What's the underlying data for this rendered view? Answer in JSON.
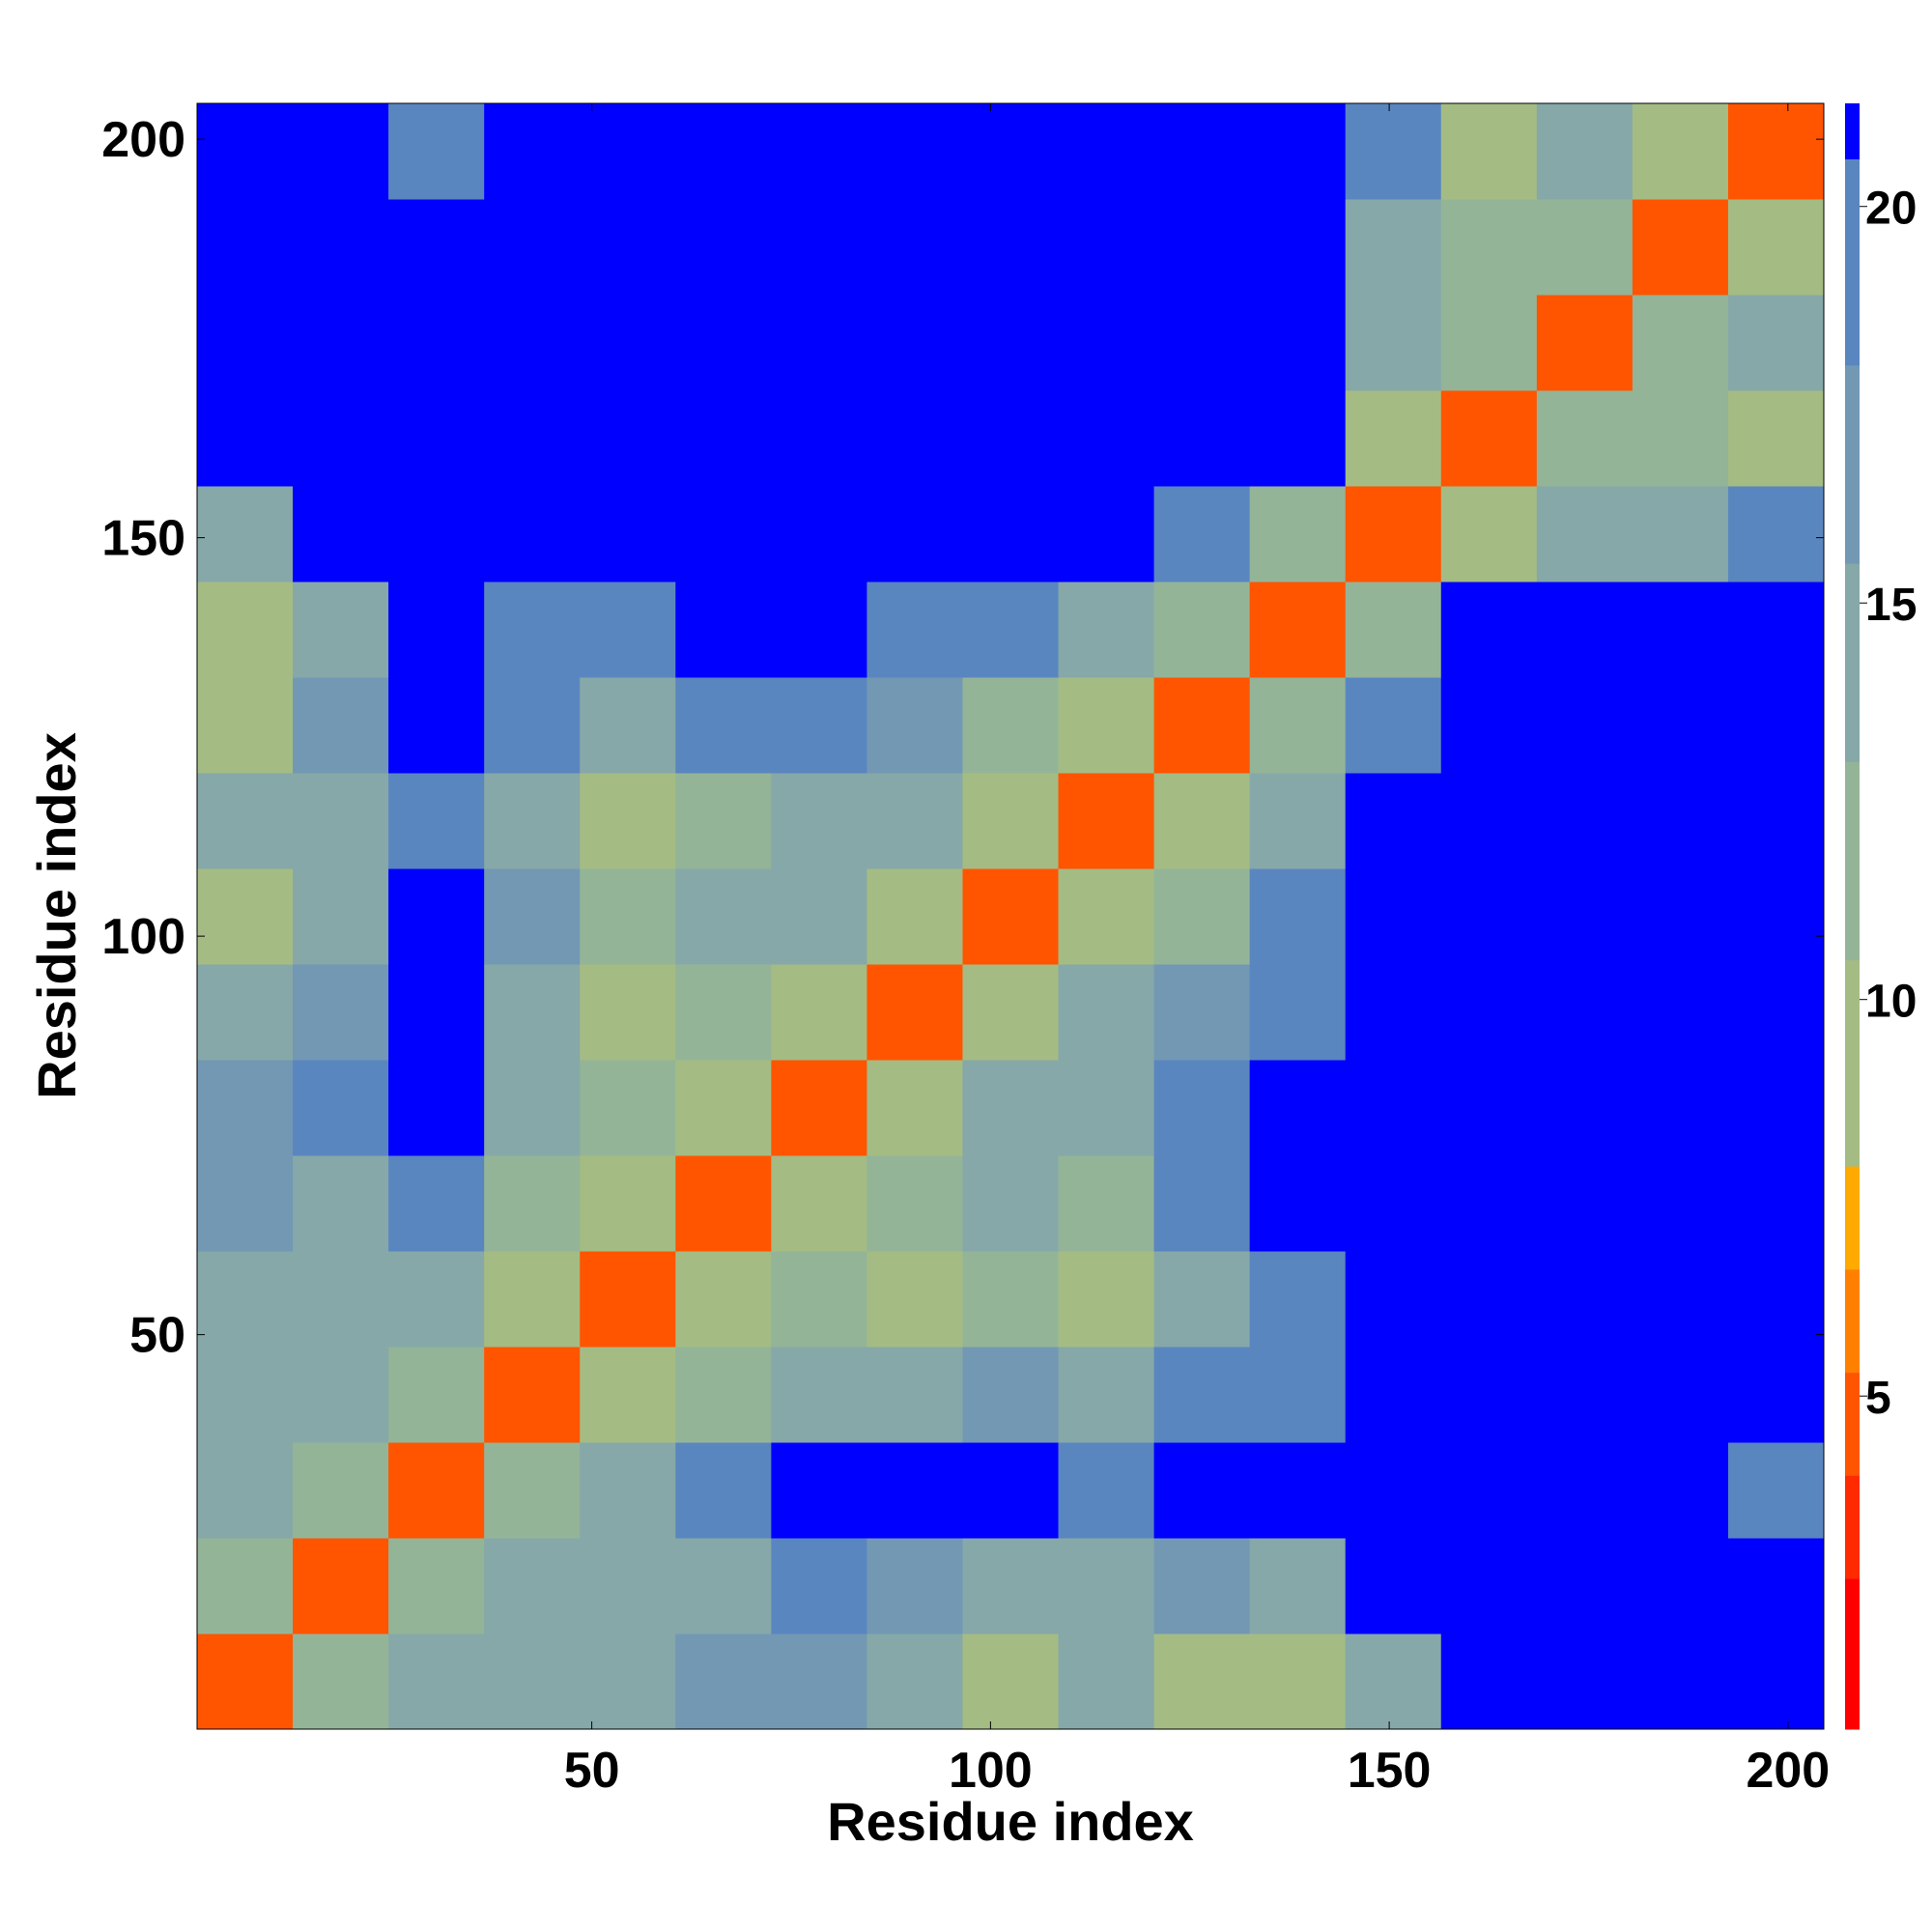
{
  "chart_data": {
    "type": "heatmap",
    "xlabel": "Residue index",
    "ylabel": "Residue index",
    "x_edges": [
      0.5,
      12.5,
      24.5,
      36.5,
      48.5,
      60.5,
      72.5,
      84.5,
      96.5,
      108.5,
      120.5,
      132.5,
      144.5,
      156.5,
      168.5,
      180.5,
      192.5,
      204.5
    ],
    "y_edges": [
      0.5,
      12.5,
      24.5,
      36.5,
      48.5,
      60.5,
      72.5,
      84.5,
      96.5,
      108.5,
      120.5,
      132.5,
      144.5,
      156.5,
      168.5,
      180.5,
      192.5,
      204.5
    ],
    "z": [
      [
        4,
        11,
        14,
        15,
        15,
        16,
        17,
        13,
        9,
        13,
        9,
        8,
        14,
        25,
        25,
        25,
        25
      ],
      [
        11,
        4,
        11,
        13,
        14,
        15,
        18,
        16,
        14,
        15,
        16,
        14,
        25,
        25,
        25,
        25,
        25
      ],
      [
        14,
        11,
        4,
        11,
        14,
        18,
        25,
        25,
        25,
        20,
        25,
        25,
        25,
        25,
        25,
        25,
        20
      ],
      [
        15,
        13,
        11,
        4,
        10,
        12,
        13,
        15,
        16,
        14,
        19,
        20,
        25,
        25,
        25,
        25,
        25
      ],
      [
        15,
        14,
        14,
        10,
        4,
        9,
        11,
        10,
        12,
        8,
        14,
        20,
        25,
        25,
        25,
        25,
        25
      ],
      [
        16,
        15,
        18,
        12,
        9,
        4,
        10,
        12,
        13,
        12,
        18,
        25,
        25,
        25,
        25,
        25,
        25
      ],
      [
        17,
        18,
        25,
        13,
        11,
        10,
        4,
        10,
        14,
        15,
        19,
        25,
        25,
        25,
        25,
        25,
        25
      ],
      [
        13,
        16,
        25,
        15,
        10,
        12,
        10,
        4,
        9,
        13,
        16,
        20,
        25,
        25,
        25,
        25,
        25
      ],
      [
        9,
        14,
        25,
        16,
        12,
        13,
        14,
        9,
        4,
        8,
        12,
        20,
        25,
        25,
        25,
        25,
        25
      ],
      [
        13,
        15,
        20,
        14,
        8,
        12,
        15,
        13,
        8,
        4,
        10,
        14,
        25,
        25,
        25,
        25,
        25
      ],
      [
        9,
        16,
        25,
        19,
        14,
        18,
        19,
        16,
        12,
        10,
        4,
        11,
        19,
        25,
        25,
        25,
        25
      ],
      [
        8,
        14,
        25,
        20,
        20,
        25,
        25,
        20,
        20,
        14,
        11,
        4,
        11,
        25,
        25,
        25,
        25
      ],
      [
        14,
        25,
        25,
        25,
        25,
        25,
        25,
        25,
        25,
        25,
        19,
        11,
        4,
        10,
        14,
        15,
        19
      ],
      [
        25,
        25,
        25,
        25,
        25,
        25,
        25,
        25,
        25,
        25,
        25,
        25,
        10,
        4,
        11,
        12,
        9
      ],
      [
        25,
        25,
        25,
        25,
        25,
        25,
        25,
        25,
        25,
        25,
        25,
        25,
        14,
        11,
        4,
        11,
        13
      ],
      [
        25,
        25,
        25,
        25,
        25,
        25,
        25,
        25,
        25,
        25,
        25,
        25,
        15,
        12,
        11,
        4,
        10
      ],
      [
        25,
        25,
        20,
        25,
        25,
        25,
        25,
        25,
        25,
        25,
        25,
        25,
        19,
        9,
        13,
        10,
        4
      ]
    ],
    "xlim": [
      0.5,
      204.5
    ],
    "ylim": [
      0.5,
      204.5
    ],
    "xticks": [
      50,
      100,
      150,
      200
    ],
    "yticks": [
      50,
      100,
      150,
      200
    ],
    "colorbar": {
      "levels": [
        0.8,
        2.7,
        4,
        5.3,
        6.6,
        7.9,
        10.5,
        13,
        15.5,
        18,
        20.6,
        21.3
      ],
      "colors": [
        "#ff0000",
        "#ff2a00",
        "#ff5500",
        "#ff8000",
        "#ffaa00",
        "#a4bc84",
        "#94b498",
        "#86a8a8",
        "#7298b4",
        "#5a86c0",
        "#0000ff"
      ],
      "lim": [
        0.8,
        21.3
      ],
      "ticks": [
        5,
        10,
        15,
        20
      ]
    }
  }
}
